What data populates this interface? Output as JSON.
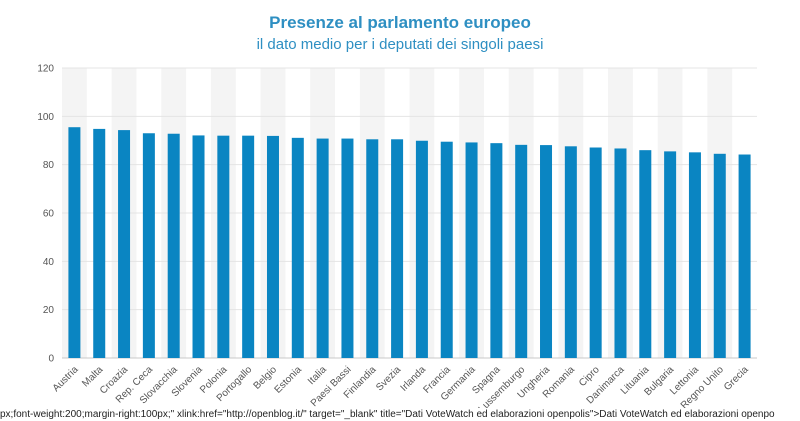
{
  "chart_data": {
    "type": "bar",
    "title": "Presenze al parlamento europeo",
    "subtitle": "il dato medio per i deputati dei singoli paesi",
    "xlabel": "",
    "ylabel": "",
    "ylim": [
      0,
      120
    ],
    "yticks": [
      "0",
      "20",
      "40",
      "60",
      "80",
      "100",
      "120"
    ],
    "grid": true,
    "categories": [
      "Austria",
      "Malta",
      "Croazia",
      "Rep. Ceca",
      "Slovacchia",
      "Slovenia",
      "Polonia",
      "Portogallo",
      "Belgio",
      "Estonia",
      "Italia",
      "Paesi Bassi",
      "Finlandia",
      "Svezia",
      "Irlanda",
      "Francia",
      "Germania",
      "Spagna",
      "Lussemburgo",
      "Ungheria",
      "Romania",
      "Cipro",
      "Danimarca",
      "Lituania",
      "Bulgaria",
      "Lettonia",
      "Regno Unito",
      "Grecia"
    ],
    "values": [
      95.5,
      94.8,
      94.3,
      93,
      92.8,
      92.1,
      92,
      92,
      91.9,
      91.1,
      90.8,
      90.8,
      90.5,
      90.5,
      89.9,
      89.5,
      89.2,
      88.9,
      88.2,
      88.1,
      87.6,
      87.1,
      86.7,
      86,
      85.5,
      85.1,
      84.5,
      84.2
    ],
    "bar_color": "#0a85c2",
    "band_color": "#f4f4f4"
  },
  "footer_text": "px;font-weight:200;margin-right:100px;\" xlink:href=\"http://openblog.it/\" target=\"_blank\" title=\"Dati VoteWatch ed elaborazioni openpolis\">Dati VoteWatch ed elaborazioni openpo"
}
